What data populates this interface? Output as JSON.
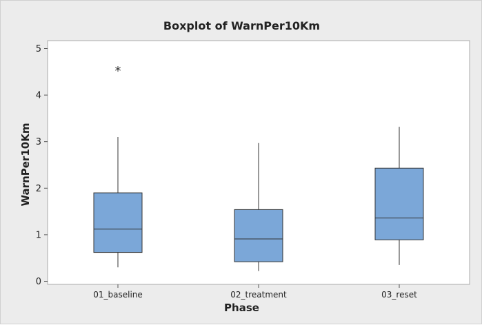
{
  "chart_data": {
    "type": "boxplot",
    "title": "Boxplot of WarnPer10Km",
    "xlabel": "Phase",
    "ylabel": "WarnPer10Km",
    "ylim": [
      0,
      5
    ],
    "yticks": [
      "0",
      "1",
      "2",
      "3",
      "4",
      "5"
    ],
    "categories": [
      "01_baseline",
      "02_treatment",
      "03_reset"
    ],
    "boxes": [
      {
        "category": "01_baseline",
        "whisker_low": 0.3,
        "q1": 0.62,
        "median": 1.12,
        "q3": 1.9,
        "whisker_high": 3.1,
        "outliers": [
          4.55
        ]
      },
      {
        "category": "02_treatment",
        "whisker_low": 0.22,
        "q1": 0.42,
        "median": 0.91,
        "q3": 1.54,
        "whisker_high": 2.97,
        "outliers": []
      },
      {
        "category": "03_reset",
        "whisker_low": 0.35,
        "q1": 0.89,
        "median": 1.36,
        "q3": 2.43,
        "whisker_high": 3.32,
        "outliers": []
      }
    ],
    "outlier_marker": "*",
    "grid": false,
    "colors": {
      "box_fill": "#7ba7d8",
      "line": "#333333",
      "background": "#ececec",
      "plot_background": "#ffffff"
    }
  }
}
